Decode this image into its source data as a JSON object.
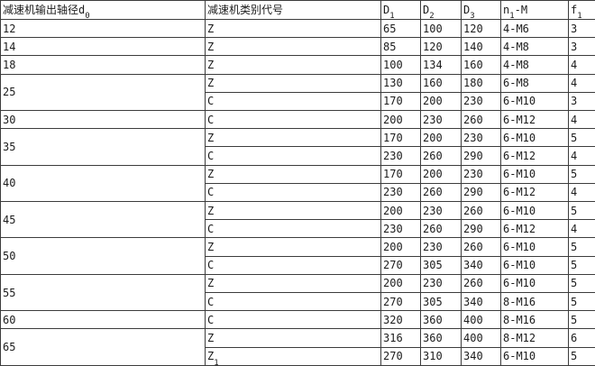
{
  "colors": {
    "border": "#3c3c3c",
    "text": "#1c1c1c",
    "background": "#ffffff"
  },
  "table": {
    "headers": [
      {
        "text": "减速机输出轴径d",
        "sub": "0",
        "tail": ""
      },
      {
        "text": "减速机类别代号",
        "sub": "",
        "tail": ""
      },
      {
        "text": "D",
        "sub": "1",
        "tail": ""
      },
      {
        "text": "D",
        "sub": "2",
        "tail": ""
      },
      {
        "text": "D",
        "sub": "3",
        "tail": ""
      },
      {
        "text": "n",
        "sub": "1",
        "tail": "-M"
      },
      {
        "text": "f",
        "sub": "1",
        "tail": ""
      }
    ],
    "groups": [
      {
        "d0": "12",
        "entries": [
          {
            "type": "Z",
            "type_sub": "",
            "D1": "65",
            "D2": "100",
            "D3": "120",
            "n1M": "4-M6",
            "f1": "3"
          }
        ]
      },
      {
        "d0": "14",
        "entries": [
          {
            "type": "Z",
            "type_sub": "",
            "D1": "85",
            "D2": "120",
            "D3": "140",
            "n1M": "4-M8",
            "f1": "3"
          }
        ]
      },
      {
        "d0": "18",
        "entries": [
          {
            "type": "Z",
            "type_sub": "",
            "D1": "100",
            "D2": "134",
            "D3": "160",
            "n1M": "4-M8",
            "f1": "4"
          }
        ]
      },
      {
        "d0": "25",
        "entries": [
          {
            "type": "Z",
            "type_sub": "",
            "D1": "130",
            "D2": "160",
            "D3": "180",
            "n1M": "6-M8",
            "f1": "4"
          },
          {
            "type": "C",
            "type_sub": "",
            "D1": "170",
            "D2": "200",
            "D3": "230",
            "n1M": "6-M10",
            "f1": "3"
          }
        ]
      },
      {
        "d0": "30",
        "entries": [
          {
            "type": "C",
            "type_sub": "",
            "D1": "200",
            "D2": "230",
            "D3": "260",
            "n1M": "6-M12",
            "f1": "4"
          }
        ]
      },
      {
        "d0": "35",
        "entries": [
          {
            "type": "Z",
            "type_sub": "",
            "D1": "170",
            "D2": "200",
            "D3": "230",
            "n1M": "6-M10",
            "f1": "5"
          },
          {
            "type": "C",
            "type_sub": "",
            "D1": "230",
            "D2": "260",
            "D3": "290",
            "n1M": "6-M12",
            "f1": "4"
          }
        ]
      },
      {
        "d0": "40",
        "entries": [
          {
            "type": "Z",
            "type_sub": "",
            "D1": "170",
            "D2": "200",
            "D3": "230",
            "n1M": "6-M10",
            "f1": "5"
          },
          {
            "type": "C",
            "type_sub": "",
            "D1": "230",
            "D2": "260",
            "D3": "290",
            "n1M": "6-M12",
            "f1": "4"
          }
        ]
      },
      {
        "d0": "45",
        "entries": [
          {
            "type": "Z",
            "type_sub": "",
            "D1": "200",
            "D2": "230",
            "D3": "260",
            "n1M": "6-M10",
            "f1": "5"
          },
          {
            "type": "C",
            "type_sub": "",
            "D1": "230",
            "D2": "260",
            "D3": "290",
            "n1M": "6-M12",
            "f1": "4"
          }
        ]
      },
      {
        "d0": "50",
        "entries": [
          {
            "type": "Z",
            "type_sub": "",
            "D1": "200",
            "D2": "230",
            "D3": "260",
            "n1M": "6-M10",
            "f1": "5"
          },
          {
            "type": "C",
            "type_sub": "",
            "D1": "270",
            "D2": "305",
            "D3": "340",
            "n1M": "6-M10",
            "f1": "5"
          }
        ]
      },
      {
        "d0": "55",
        "entries": [
          {
            "type": "Z",
            "type_sub": "",
            "D1": "200",
            "D2": "230",
            "D3": "260",
            "n1M": "6-M10",
            "f1": "5"
          },
          {
            "type": "C",
            "type_sub": "",
            "D1": "270",
            "D2": "305",
            "D3": "340",
            "n1M": "8-M16",
            "f1": "5"
          }
        ]
      },
      {
        "d0": "60",
        "entries": [
          {
            "type": "C",
            "type_sub": "",
            "D1": "320",
            "D2": "360",
            "D3": "400",
            "n1M": "8-M16",
            "f1": "5"
          }
        ]
      },
      {
        "d0": "65",
        "entries": [
          {
            "type": "Z",
            "type_sub": "",
            "D1": "316",
            "D2": "360",
            "D3": "400",
            "n1M": "8-M12",
            "f1": "6"
          },
          {
            "type": "Z",
            "type_sub": "1",
            "D1": "270",
            "D2": "310",
            "D3": "340",
            "n1M": "6-M10",
            "f1": "5"
          }
        ]
      }
    ]
  }
}
